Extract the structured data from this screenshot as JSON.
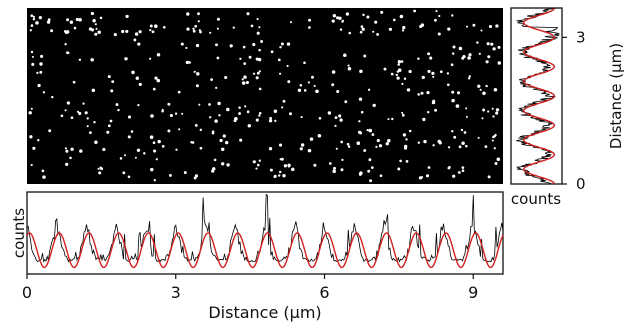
{
  "chart_data": [
    {
      "type": "heatmap",
      "description_role": "localization image",
      "colorscale": {
        "background": "#000000",
        "points": "#ffffff"
      }
    },
    {
      "type": "line",
      "xlabel": "Distance (µm)",
      "ylabel": "counts",
      "xlim": [
        0,
        9.6
      ],
      "x_ticks": [
        "0",
        "3",
        "6",
        "9"
      ],
      "x_tick_values": [
        0,
        3,
        6,
        9
      ],
      "period_um": 0.6,
      "series": [
        {
          "color": "#000000"
        },
        {
          "color": "#d42020"
        }
      ]
    },
    {
      "type": "line",
      "orientation": "vertical",
      "xlabel": "counts",
      "ylabel": "Distance (µm)",
      "ylim": [
        0,
        3.6
      ],
      "y_ticks": [
        "0",
        "3"
      ],
      "y_tick_values": [
        0,
        3
      ],
      "period_um": 0.6,
      "series": [
        {
          "color": "#000000"
        },
        {
          "color": "#d42020"
        }
      ]
    }
  ]
}
